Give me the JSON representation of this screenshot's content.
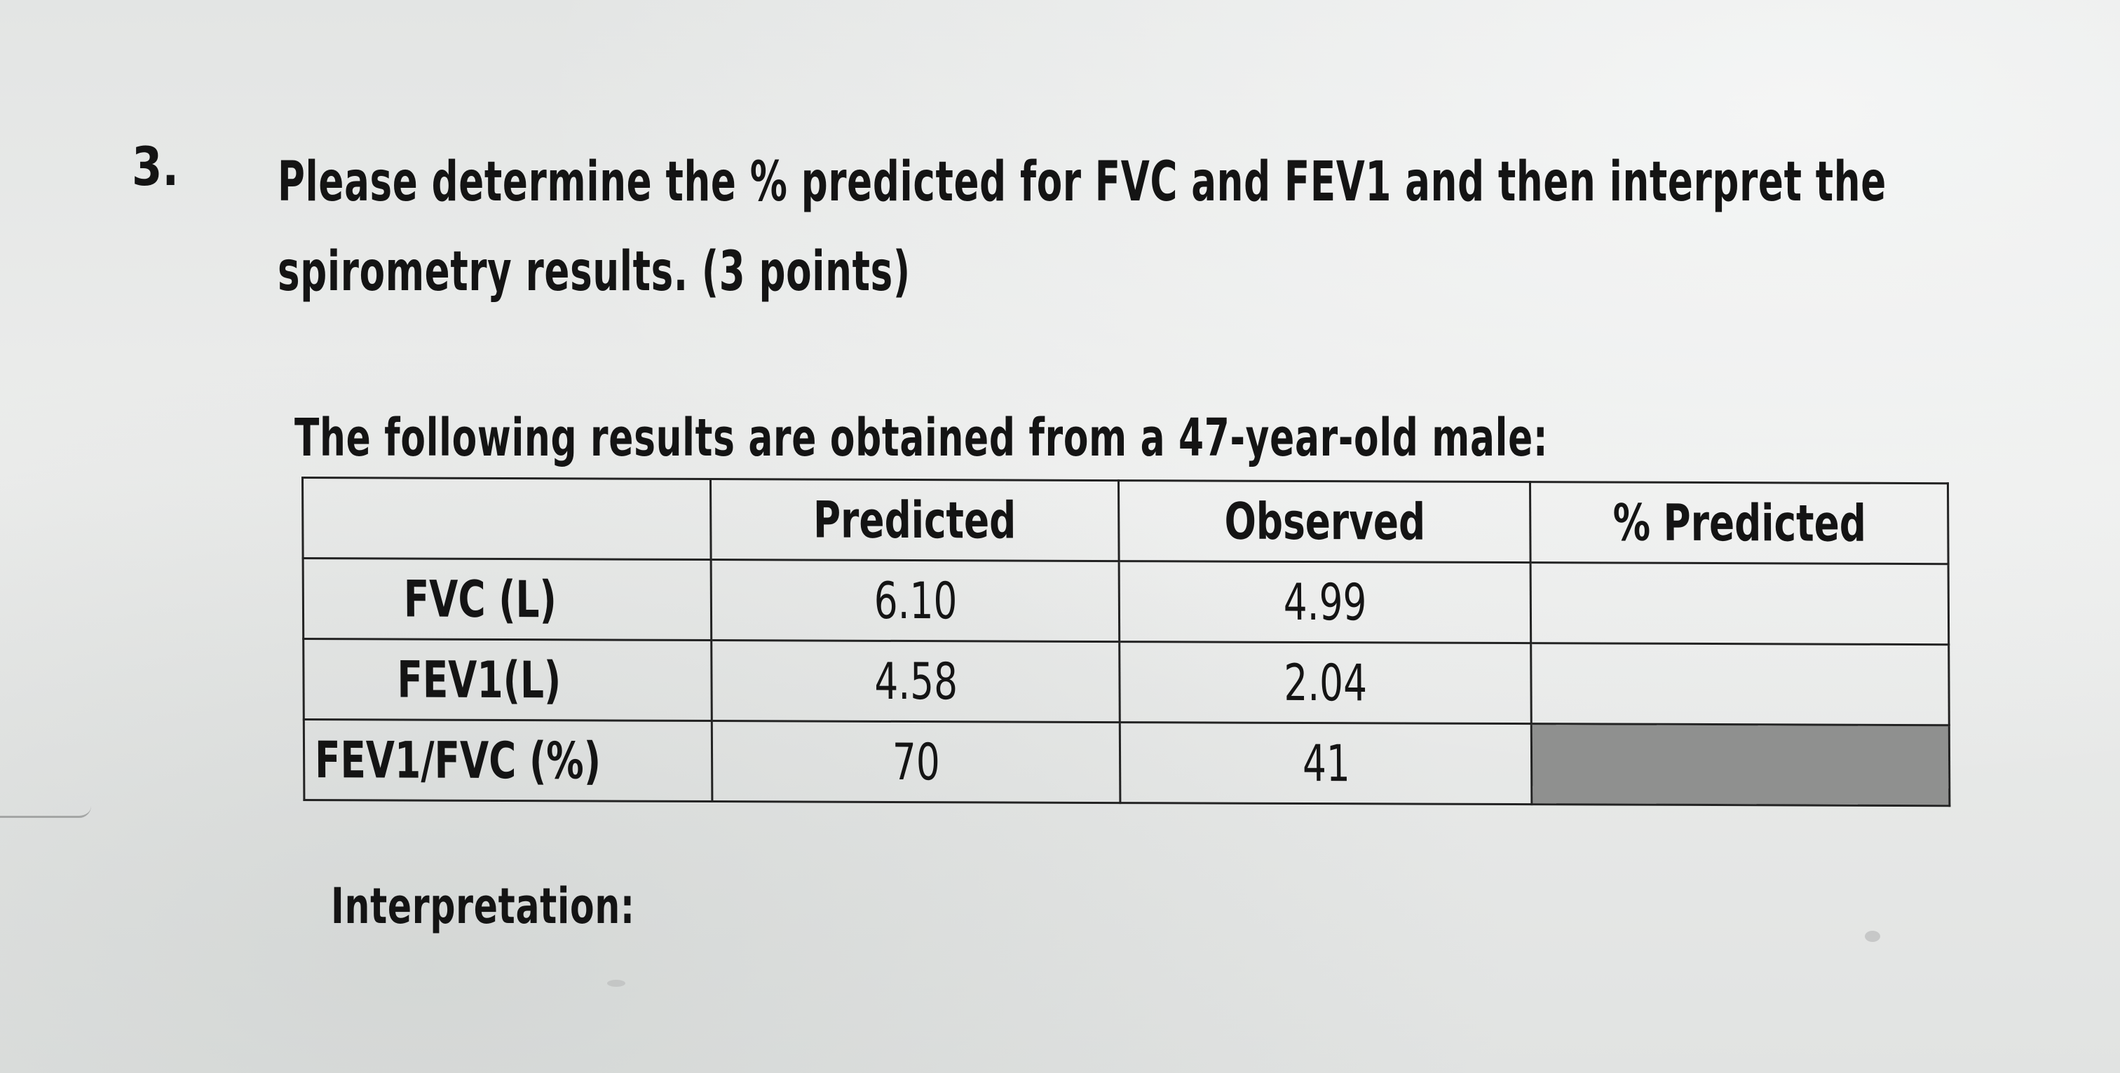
{
  "question": {
    "number": "3.",
    "lines": [
      "Please determine the % predicted for FVC and FEV1 and then interpret the",
      "spirometry results. (3 points)"
    ]
  },
  "intro": "The following results are obtained from a 47-year-old male:",
  "table": {
    "headers": [
      "",
      "Predicted",
      "Observed",
      "% Predicted"
    ],
    "rows": [
      {
        "label": "FVC (L)",
        "predicted": "6.10",
        "observed": "4.99",
        "percent": ""
      },
      {
        "label": "FEV1(L)",
        "predicted": "4.58",
        "observed": "2.04",
        "percent": ""
      },
      {
        "label": "FEV1/FVC (%)",
        "predicted": "70",
        "observed": "41",
        "percent": ""
      }
    ]
  },
  "interpretation_label": "Interpretation:",
  "colors": {
    "paper": "#e7e9e8",
    "text": "#141414",
    "shaded_cell": "#8f908f"
  }
}
